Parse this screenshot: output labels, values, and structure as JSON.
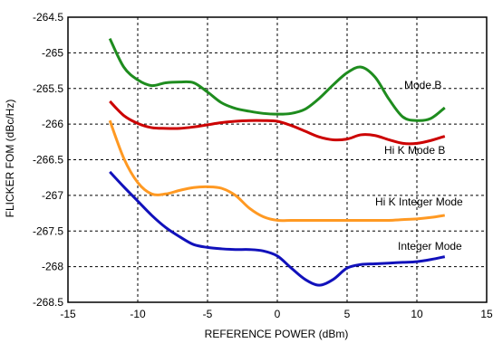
{
  "chart_data": {
    "type": "line",
    "xlabel": "REFERENCE POWER (dBm)",
    "ylabel": "FLICKER FOM (dBc/Hz)",
    "xlim": [
      -15,
      15
    ],
    "ylim": [
      -268.5,
      -264.5
    ],
    "xticks": [
      "-15",
      "-10",
      "-5",
      "0",
      "5",
      "10",
      "15"
    ],
    "yticks": [
      "-264.5",
      "-265",
      "-265.5",
      "-266",
      "-266.5",
      "-267",
      "-267.5",
      "-268",
      "-268.5"
    ],
    "grid": true,
    "series": [
      {
        "name": "Mode B",
        "color": "#1e8c1e",
        "x": [
          -12,
          -11,
          -10,
          -9,
          -8,
          -7,
          -6,
          -5,
          -4,
          -3,
          -2,
          -1,
          0,
          1,
          2,
          3,
          4,
          5,
          6,
          7,
          8,
          9,
          10,
          11,
          12
        ],
        "y": [
          -264.8,
          -265.2,
          -265.38,
          -265.46,
          -265.42,
          -265.41,
          -265.42,
          -265.55,
          -265.7,
          -265.78,
          -265.82,
          -265.85,
          -265.86,
          -265.85,
          -265.79,
          -265.64,
          -265.45,
          -265.28,
          -265.2,
          -265.34,
          -265.65,
          -265.9,
          -265.95,
          -265.92,
          -265.77
        ]
      },
      {
        "name": "Hi K Mode B",
        "color": "#cc0000",
        "x": [
          -12,
          -11,
          -10,
          -9,
          -8,
          -7,
          -6,
          -5,
          -4,
          -3,
          -2,
          -1,
          0,
          1,
          2,
          3,
          4,
          5,
          6,
          7,
          8,
          9,
          10,
          11,
          12
        ],
        "y": [
          -265.68,
          -265.88,
          -265.99,
          -266.05,
          -266.06,
          -266.06,
          -266.04,
          -266.01,
          -265.98,
          -265.96,
          -265.95,
          -265.95,
          -265.96,
          -266.02,
          -266.1,
          -266.18,
          -266.22,
          -266.21,
          -266.15,
          -266.16,
          -266.22,
          -266.27,
          -266.27,
          -266.23,
          -266.17
        ]
      },
      {
        "name": "Hi K Integer Mode",
        "color": "#ff9922",
        "x": [
          -12,
          -11,
          -10,
          -9,
          -8,
          -7,
          -6,
          -5,
          -4,
          -3,
          -2,
          -1,
          0,
          1,
          2,
          3,
          4,
          5,
          6,
          7,
          8,
          9,
          10,
          11,
          12
        ],
        "y": [
          -265.95,
          -266.48,
          -266.82,
          -266.98,
          -266.98,
          -266.93,
          -266.89,
          -266.88,
          -266.9,
          -267.0,
          -267.18,
          -267.3,
          -267.35,
          -267.35,
          -267.35,
          -267.35,
          -267.35,
          -267.35,
          -267.35,
          -267.35,
          -267.35,
          -267.34,
          -267.33,
          -267.31,
          -267.28
        ]
      },
      {
        "name": "Integer Mode",
        "color": "#1111bb",
        "x": [
          -12,
          -11,
          -10,
          -9,
          -8,
          -7,
          -6,
          -5,
          -4,
          -3,
          -2,
          -1,
          0,
          1,
          2,
          3,
          4,
          5,
          6,
          7,
          8,
          9,
          10,
          11,
          12
        ],
        "y": [
          -266.67,
          -266.88,
          -267.08,
          -267.28,
          -267.45,
          -267.58,
          -267.69,
          -267.73,
          -267.75,
          -267.76,
          -267.76,
          -267.78,
          -267.85,
          -268.02,
          -268.18,
          -268.26,
          -268.18,
          -268.02,
          -267.97,
          -267.96,
          -267.95,
          -267.94,
          -267.93,
          -267.9,
          -267.86
        ]
      }
    ],
    "annotations": [
      "Mode B",
      "Hi K Mode B",
      "Hi K Integer Mode",
      "Integer Mode"
    ]
  }
}
